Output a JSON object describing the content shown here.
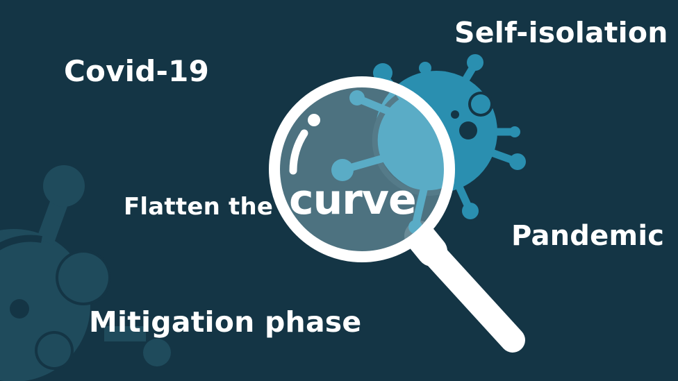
{
  "terms": {
    "covid": "Covid-19",
    "self_isolation": "Self-isolation",
    "pandemic": "Pandemic",
    "mitigation": "Mitigation phase",
    "flatten_prefix": "Flatten the",
    "flatten_word": "curve"
  },
  "colors": {
    "background": "#143545",
    "virus_faint": "#1f4b5c",
    "virus_bright": "#2a8fb0",
    "lens_tint": "#557b89",
    "text": "#ffffff"
  },
  "icons": {
    "magnifier": "magnifying-glass-icon",
    "virus": "virus-icon"
  }
}
